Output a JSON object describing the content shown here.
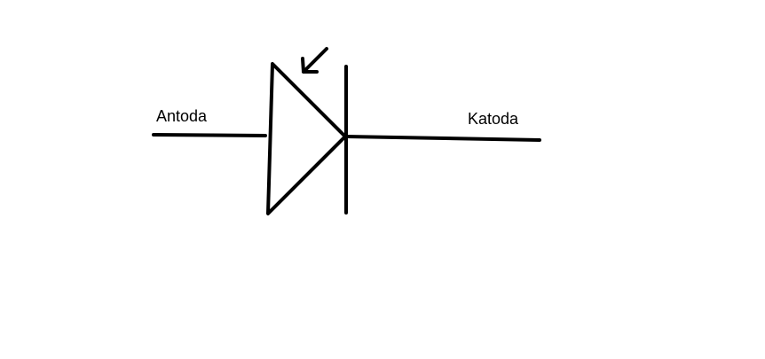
{
  "diagram": {
    "anode_label": "Antoda",
    "cathode_label": "Katoda"
  },
  "colors": {
    "background": "#ffffff",
    "stroke": "#000000",
    "text": "#000000"
  },
  "icons": {
    "symbol": "photodiode-icon",
    "arrow": "incoming-light-arrow-icon"
  }
}
